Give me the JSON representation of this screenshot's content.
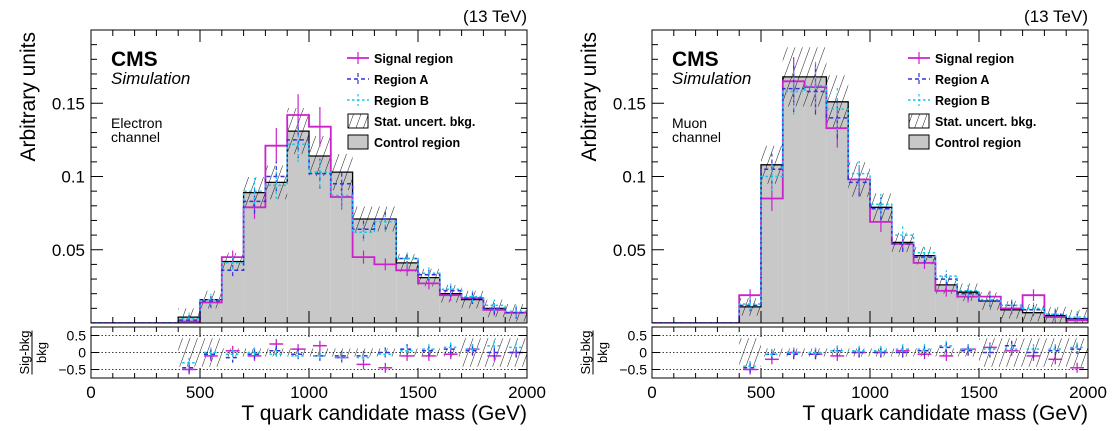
{
  "figure": {
    "energy_label": "(13 TeV)",
    "experiment_label": "CMS",
    "status_label": "Simulation",
    "ylabel": "Arbitrary units",
    "xlabel": "T quark candidate mass (GeV)",
    "ratio_ylabel_numerator": "Sig-bkg",
    "ratio_ylabel_denominator": "bkg",
    "colors": {
      "signal": "#cc22cc",
      "region_a": "#3030dd",
      "region_b": "#11c8e8",
      "control_fill": "#c8c8c8",
      "control_line": "#000000"
    }
  },
  "chart_data": [
    {
      "type": "histogram",
      "panel": "electron",
      "channel_label": [
        "Electron",
        "channel"
      ],
      "bin_edges": [
        0,
        100,
        200,
        300,
        400,
        500,
        600,
        700,
        800,
        900,
        1000,
        1100,
        1200,
        1300,
        1400,
        1500,
        1600,
        1700,
        1800,
        1900,
        2000
      ],
      "xlim": [
        0,
        2000
      ],
      "ylim": [
        0,
        0.2
      ],
      "yticks": [
        0.05,
        0.1,
        0.15
      ],
      "ytick_labels": [
        "0.05",
        "0.1",
        "0.15"
      ],
      "xticks": [
        0,
        500,
        1000,
        1500,
        2000
      ],
      "xtick_labels": [
        "0",
        "500",
        "1000",
        "1500",
        "2000"
      ],
      "series": [
        {
          "name": "Control region",
          "style": "filled",
          "values": [
            0,
            0,
            0,
            0,
            0.004,
            0.016,
            0.042,
            0.089,
            0.096,
            0.131,
            0.114,
            0.103,
            0.071,
            0.071,
            0.041,
            0.031,
            0.02,
            0.016,
            0.01,
            0.007
          ]
        },
        {
          "name": "Signal region",
          "style": "line",
          "values": [
            0,
            0,
            0,
            0,
            0.001,
            0.014,
            0.045,
            0.079,
            0.121,
            0.142,
            0.134,
            0.086,
            0.045,
            0.04,
            0.036,
            0.027,
            0.019,
            0.017,
            0.009,
            0.007
          ]
        },
        {
          "name": "Region A",
          "style": "dashed",
          "values": [
            0,
            0,
            0,
            0,
            0.002,
            0.015,
            0.036,
            0.083,
            0.1,
            0.125,
            0.102,
            0.095,
            0.064,
            0.071,
            0.044,
            0.033,
            0.022,
            0.017,
            0.01,
            0.007
          ]
        },
        {
          "name": "Region B",
          "style": "dotted",
          "values": [
            0,
            0,
            0,
            0,
            0.003,
            0.016,
            0.041,
            0.09,
            0.094,
            0.122,
            0.103,
            0.087,
            0.062,
            0.069,
            0.044,
            0.034,
            0.023,
            0.018,
            0.012,
            0.008
          ]
        }
      ],
      "ratio": {
        "ylim": [
          -0.75,
          0.75
        ],
        "yticks": [
          -0.5,
          0,
          0.5
        ],
        "ytick_labels": [
          "−0.5",
          "0",
          "0.5"
        ],
        "series": [
          {
            "name": "Signal region",
            "values": [
              null,
              null,
              null,
              null,
              -0.5,
              -0.1,
              0.05,
              -0.1,
              0.25,
              0.1,
              0.2,
              -0.15,
              -0.35,
              -0.45,
              -0.1,
              -0.1,
              -0.05,
              0.1,
              -0.1,
              0.0
            ]
          },
          {
            "name": "Region A",
            "values": [
              null,
              null,
              null,
              null,
              -0.45,
              -0.05,
              -0.15,
              -0.05,
              0.05,
              -0.05,
              -0.1,
              -0.1,
              -0.1,
              0.0,
              0.1,
              0.05,
              0.1,
              0.05,
              0.0,
              0.0
            ]
          },
          {
            "name": "Region B",
            "values": [
              null,
              null,
              null,
              null,
              -0.3,
              0.0,
              -0.05,
              0.0,
              -0.05,
              -0.1,
              -0.1,
              -0.15,
              -0.15,
              -0.05,
              0.05,
              0.1,
              0.15,
              0.1,
              0.2,
              0.15
            ]
          }
        ]
      },
      "legend": [
        "Signal region",
        "Region A",
        "Region B",
        "Stat. uncert. bkg.",
        "Control region"
      ],
      "legend_position": "top-right"
    },
    {
      "type": "histogram",
      "panel": "muon",
      "channel_label": [
        "Muon",
        "channel"
      ],
      "bin_edges": [
        0,
        100,
        200,
        300,
        400,
        500,
        600,
        700,
        800,
        900,
        1000,
        1100,
        1200,
        1300,
        1400,
        1500,
        1600,
        1700,
        1800,
        1900,
        2000
      ],
      "xlim": [
        0,
        2000
      ],
      "ylim": [
        0,
        0.2
      ],
      "yticks": [
        0.05,
        0.1,
        0.15
      ],
      "ytick_labels": [
        "0.05",
        "0.1",
        "0.15"
      ],
      "xticks": [
        0,
        500,
        1000,
        1500,
        2000
      ],
      "xtick_labels": [
        "0",
        "500",
        "1000",
        "1500",
        "2000"
      ],
      "series": [
        {
          "name": "Control region",
          "style": "filled",
          "values": [
            0,
            0,
            0,
            0,
            0.011,
            0.108,
            0.168,
            0.168,
            0.151,
            0.098,
            0.079,
            0.055,
            0.046,
            0.026,
            0.021,
            0.015,
            0.009,
            0.007,
            0.005,
            0.003
          ]
        },
        {
          "name": "Signal region",
          "style": "line",
          "values": [
            0,
            0,
            0,
            0,
            0.019,
            0.085,
            0.165,
            0.161,
            0.133,
            0.098,
            0.069,
            0.054,
            0.041,
            0.022,
            0.018,
            0.018,
            0.01,
            0.019,
            0.004,
            0.002
          ]
        },
        {
          "name": "Region A",
          "style": "dashed",
          "values": [
            0,
            0,
            0,
            0,
            0.012,
            0.105,
            0.16,
            0.158,
            0.14,
            0.096,
            0.078,
            0.054,
            0.045,
            0.03,
            0.02,
            0.015,
            0.012,
            0.009,
            0.006,
            0.003
          ]
        },
        {
          "name": "Region B",
          "style": "dotted",
          "values": [
            0,
            0,
            0,
            0,
            0.013,
            0.1,
            0.158,
            0.162,
            0.146,
            0.102,
            0.081,
            0.06,
            0.048,
            0.032,
            0.022,
            0.016,
            0.012,
            0.01,
            0.006,
            0.004
          ]
        }
      ],
      "ratio": {
        "ylim": [
          -0.75,
          0.75
        ],
        "yticks": [
          -0.5,
          0,
          0.5
        ],
        "ytick_labels": [
          "−0.5",
          "0",
          "0.5"
        ],
        "series": [
          {
            "name": "Signal region",
            "values": [
              null,
              null,
              null,
              null,
              -0.5,
              -0.2,
              0.0,
              -0.05,
              -0.1,
              0.0,
              0.0,
              0.05,
              -0.05,
              -0.1,
              0.1,
              0.15,
              0.05,
              -0.1,
              -0.2,
              -0.45
            ]
          },
          {
            "name": "Region A",
            "values": [
              null,
              null,
              null,
              null,
              -0.45,
              -0.05,
              -0.05,
              -0.05,
              0.05,
              0.0,
              0.0,
              0.0,
              0.05,
              0.15,
              0.05,
              0.0,
              0.2,
              0.0,
              0.05,
              0.1
            ]
          },
          {
            "name": "Region B",
            "values": [
              null,
              null,
              null,
              null,
              -0.4,
              -0.05,
              0.0,
              0.0,
              0.05,
              0.05,
              0.05,
              0.1,
              0.1,
              0.2,
              0.1,
              0.1,
              0.1,
              0.1,
              0.1,
              0.15
            ]
          }
        ]
      },
      "legend": [
        "Signal region",
        "Region A",
        "Region B",
        "Stat. uncert. bkg.",
        "Control region"
      ],
      "legend_position": "top-right"
    }
  ]
}
